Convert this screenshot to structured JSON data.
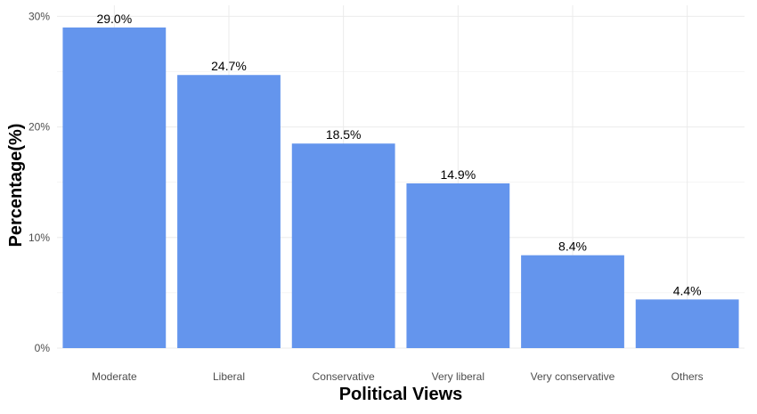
{
  "chart_data": {
    "type": "bar",
    "categories": [
      "Moderate",
      "Liberal",
      "Conservative",
      "Very liberal",
      "Very conservative",
      "Others"
    ],
    "values": [
      29.0,
      24.7,
      18.5,
      14.9,
      8.4,
      4.4
    ],
    "data_labels": [
      "29.0%",
      "24.7%",
      "18.5%",
      "14.9%",
      "8.4%",
      "4.4%"
    ],
    "xlabel": "Political Views",
    "ylabel": "Percentage(%)",
    "ylim": [
      0,
      31
    ],
    "yticks": [
      0,
      10,
      20,
      30
    ],
    "ytick_labels": [
      "0%",
      "10%",
      "20%",
      "30%"
    ],
    "grid": true,
    "legend": "none",
    "bar_color": "#6495ED"
  }
}
